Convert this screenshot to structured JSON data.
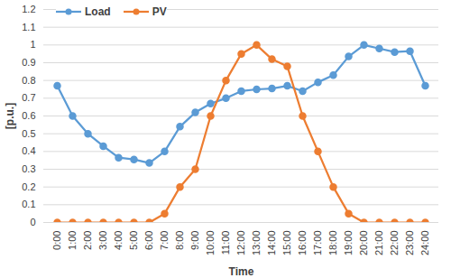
{
  "chart_data": {
    "type": "line",
    "x_label": "Time",
    "y_label": "[p.u.]",
    "categories": [
      "0:00",
      "1:00",
      "2:00",
      "3:00",
      "4:00",
      "5:00",
      "6:00",
      "7:00",
      "8:00",
      "9:00",
      "10:00",
      "11:00",
      "12:00",
      "13:00",
      "14:00",
      "15:00",
      "16:00",
      "17:00",
      "18:00",
      "19:00",
      "20:00",
      "21:00",
      "22:00",
      "23:00",
      "24:00"
    ],
    "series": [
      {
        "name": "Load",
        "color": "#5b9bd5",
        "marker": "circle",
        "values": [
          0.77,
          0.6,
          0.5,
          0.43,
          0.365,
          0.355,
          0.335,
          0.4,
          0.54,
          0.62,
          0.67,
          0.7,
          0.74,
          0.75,
          0.755,
          0.77,
          0.74,
          0.79,
          0.83,
          0.935,
          1.0,
          0.98,
          0.96,
          0.965,
          0.77
        ]
      },
      {
        "name": "PV",
        "color": "#ed7d31",
        "marker": "circle",
        "values": [
          0,
          0,
          0,
          0,
          0,
          0,
          0,
          0.05,
          0.2,
          0.3,
          0.6,
          0.8,
          0.95,
          1.0,
          0.92,
          0.88,
          0.6,
          0.4,
          0.2,
          0.05,
          0,
          0,
          0,
          0,
          0
        ]
      }
    ],
    "ylim": [
      0,
      1.2
    ],
    "yticks": [
      0,
      0.1,
      0.2,
      0.3,
      0.4,
      0.5,
      0.6,
      0.7,
      0.8,
      0.9,
      1,
      1.1,
      1.2
    ],
    "grid": true,
    "legend": "top-left"
  }
}
